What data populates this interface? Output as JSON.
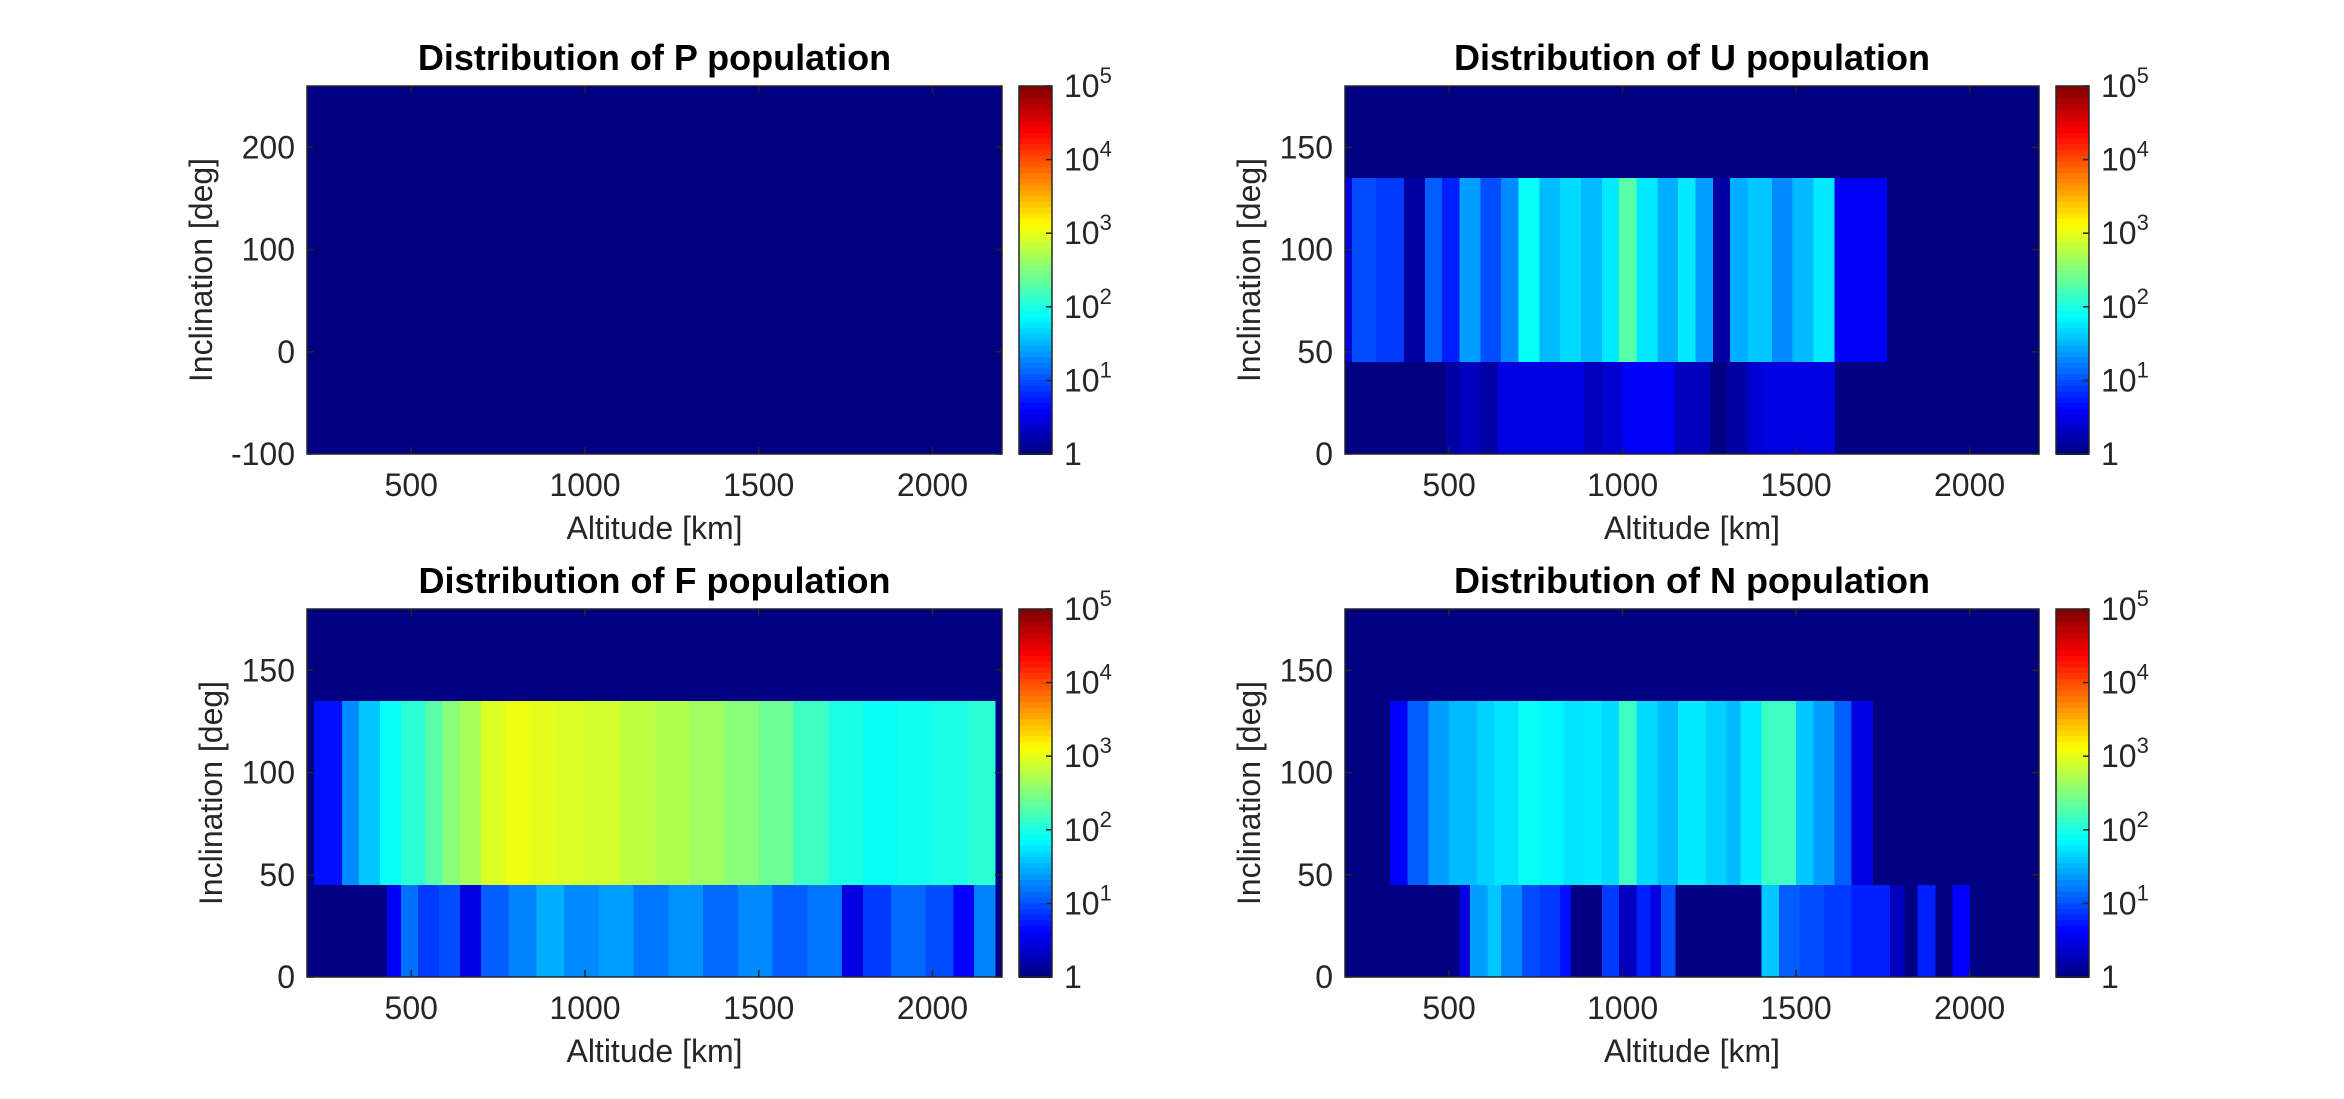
{
  "chart_data": [
    {
      "type": "heatmap",
      "title": "Distribution of P population",
      "xlabel": "Altitude [km]",
      "ylabel": "Inclination [deg]",
      "xlim": [
        200,
        2200
      ],
      "ylim": [
        -100,
        260
      ],
      "xticks": [
        500,
        1000,
        1500,
        2000
      ],
      "yticks": [
        -100,
        0,
        100,
        200
      ],
      "colorbar": {
        "scale": "log",
        "range": [
          1,
          100000
        ],
        "ticks": [
          "1",
          "10^1",
          "10^2",
          "10^3",
          "10^4",
          "10^5"
        ]
      },
      "background_value": 1,
      "bands": []
    },
    {
      "type": "heatmap",
      "title": "Distribution of U population",
      "xlabel": "Altitude [km]",
      "ylabel": "Inclination [deg]",
      "xlim": [
        200,
        2200
      ],
      "ylim": [
        0,
        180
      ],
      "xticks": [
        500,
        1000,
        1500,
        2000
      ],
      "yticks": [
        0,
        50,
        100,
        150
      ],
      "colorbar": {
        "scale": "log",
        "range": [
          1,
          100000
        ],
        "ticks": [
          "1",
          "10^1",
          "10^2",
          "10^3",
          "10^4",
          "10^5"
        ]
      },
      "background_value": 1,
      "bands": [
        {
          "ylo": 45,
          "yhi": 135,
          "cells": [
            [
              200,
              220,
              3
            ],
            [
              220,
              290,
              10
            ],
            [
              290,
              370,
              8
            ],
            [
              370,
              430,
              1.5
            ],
            [
              430,
              480,
              12
            ],
            [
              480,
              530,
              6
            ],
            [
              530,
              590,
              25
            ],
            [
              590,
              650,
              10
            ],
            [
              650,
              700,
              20
            ],
            [
              700,
              760,
              80
            ],
            [
              760,
              820,
              35
            ],
            [
              820,
              880,
              50
            ],
            [
              880,
              940,
              35
            ],
            [
              940,
              990,
              60
            ],
            [
              990,
              1040,
              200
            ],
            [
              1040,
              1100,
              60
            ],
            [
              1100,
              1160,
              30
            ],
            [
              1160,
              1210,
              60
            ],
            [
              1210,
              1260,
              25
            ],
            [
              1260,
              1310,
              1.5
            ],
            [
              1310,
              1360,
              30
            ],
            [
              1360,
              1430,
              40
            ],
            [
              1430,
              1490,
              20
            ],
            [
              1490,
              1550,
              35
            ],
            [
              1550,
              1610,
              60
            ],
            [
              1610,
              1760,
              4
            ]
          ]
        },
        {
          "ylo": 0,
          "yhi": 45,
          "cells": [
            [
              490,
              530,
              1.5
            ],
            [
              530,
              590,
              2
            ],
            [
              590,
              640,
              1.5
            ],
            [
              640,
              890,
              3
            ],
            [
              890,
              940,
              2
            ],
            [
              940,
              1000,
              2.5
            ],
            [
              1000,
              1150,
              4
            ],
            [
              1150,
              1250,
              2
            ],
            [
              1300,
              1360,
              1.5
            ],
            [
              1360,
              1400,
              2.5
            ],
            [
              1400,
              1610,
              3
            ]
          ]
        }
      ]
    },
    {
      "type": "heatmap",
      "title": "Distribution of F population",
      "xlabel": "Altitude [km]",
      "ylabel": "Inclination [deg]",
      "xlim": [
        200,
        2200
      ],
      "ylim": [
        0,
        180
      ],
      "xticks": [
        500,
        1000,
        1500,
        2000
      ],
      "yticks": [
        0,
        50,
        100,
        150
      ],
      "colorbar": {
        "scale": "log",
        "range": [
          1,
          100000
        ],
        "ticks": [
          "1",
          "10^1",
          "10^2",
          "10^3",
          "10^4",
          "10^5"
        ]
      },
      "background_value": 1,
      "bands": [
        {
          "ylo": 45,
          "yhi": 135,
          "cells": [
            [
              220,
              300,
              5
            ],
            [
              300,
              350,
              20
            ],
            [
              350,
              410,
              40
            ],
            [
              410,
              470,
              80
            ],
            [
              470,
              540,
              120
            ],
            [
              540,
              590,
              200
            ],
            [
              590,
              640,
              350
            ],
            [
              640,
              700,
              500
            ],
            [
              700,
              770,
              900
            ],
            [
              770,
              840,
              1100
            ],
            [
              840,
              910,
              1000
            ],
            [
              910,
              1000,
              900
            ],
            [
              1000,
              1100,
              800
            ],
            [
              1100,
              1200,
              650
            ],
            [
              1200,
              1300,
              550
            ],
            [
              1300,
              1400,
              450
            ],
            [
              1400,
              1500,
              350
            ],
            [
              1500,
              1600,
              250
            ],
            [
              1600,
              1700,
              150
            ],
            [
              1700,
              1800,
              100
            ],
            [
              1800,
              1900,
              80
            ],
            [
              1900,
              2000,
              90
            ],
            [
              2000,
              2100,
              100
            ],
            [
              2100,
              2180,
              120
            ]
          ]
        },
        {
          "ylo": 0,
          "yhi": 45,
          "cells": [
            [
              430,
              470,
              4
            ],
            [
              470,
              520,
              15
            ],
            [
              520,
              580,
              8
            ],
            [
              580,
              640,
              10
            ],
            [
              640,
              700,
              3
            ],
            [
              700,
              780,
              12
            ],
            [
              780,
              860,
              18
            ],
            [
              860,
              940,
              30
            ],
            [
              940,
              1040,
              20
            ],
            [
              1040,
              1140,
              25
            ],
            [
              1140,
              1240,
              16
            ],
            [
              1240,
              1340,
              22
            ],
            [
              1340,
              1440,
              14
            ],
            [
              1440,
              1540,
              20
            ],
            [
              1540,
              1640,
              12
            ],
            [
              1640,
              1740,
              16
            ],
            [
              1740,
              1800,
              3
            ],
            [
              1800,
              1880,
              8
            ],
            [
              1880,
              1980,
              14
            ],
            [
              1980,
              2060,
              10
            ],
            [
              2060,
              2120,
              4
            ],
            [
              2120,
              2180,
              18
            ]
          ]
        }
      ]
    },
    {
      "type": "heatmap",
      "title": "Distribution of N population",
      "xlabel": "Altitude [km]",
      "ylabel": "Inclination [deg]",
      "xlim": [
        200,
        2200
      ],
      "ylim": [
        0,
        180
      ],
      "xticks": [
        500,
        1000,
        1500,
        2000
      ],
      "yticks": [
        0,
        50,
        100,
        150
      ],
      "colorbar": {
        "scale": "log",
        "range": [
          1,
          100000
        ],
        "ticks": [
          "1",
          "10^1",
          "10^2",
          "10^3",
          "10^4",
          "10^5"
        ]
      },
      "background_value": 1,
      "bands": [
        {
          "ylo": 45,
          "yhi": 135,
          "cells": [
            [
              330,
              380,
              4
            ],
            [
              380,
              440,
              12
            ],
            [
              440,
              500,
              25
            ],
            [
              500,
              580,
              35
            ],
            [
              580,
              630,
              45
            ],
            [
              630,
              700,
              55
            ],
            [
              700,
              760,
              80
            ],
            [
              760,
              830,
              70
            ],
            [
              830,
              890,
              55
            ],
            [
              890,
              940,
              60
            ],
            [
              940,
              990,
              50
            ],
            [
              990,
              1040,
              150
            ],
            [
              1040,
              1100,
              50
            ],
            [
              1100,
              1160,
              35
            ],
            [
              1160,
              1240,
              60
            ],
            [
              1240,
              1300,
              45
            ],
            [
              1300,
              1340,
              35
            ],
            [
              1340,
              1400,
              60
            ],
            [
              1400,
              1500,
              150
            ],
            [
              1500,
              1550,
              40
            ],
            [
              1550,
              1610,
              25
            ],
            [
              1610,
              1660,
              12
            ],
            [
              1660,
              1720,
              3
            ]
          ]
        },
        {
          "ylo": 0,
          "yhi": 45,
          "cells": [
            [
              530,
              560,
              3
            ],
            [
              560,
              610,
              25
            ],
            [
              610,
              650,
              40
            ],
            [
              650,
              710,
              20
            ],
            [
              710,
              760,
              10
            ],
            [
              760,
              820,
              8
            ],
            [
              820,
              850,
              5
            ],
            [
              940,
              990,
              8
            ],
            [
              990,
              1040,
              2
            ],
            [
              1040,
              1080,
              6
            ],
            [
              1080,
              1110,
              3
            ],
            [
              1110,
              1150,
              10
            ],
            [
              1400,
              1450,
              40
            ],
            [
              1450,
              1510,
              12
            ],
            [
              1510,
              1580,
              10
            ],
            [
              1580,
              1660,
              8
            ],
            [
              1660,
              1770,
              6
            ],
            [
              1770,
              1810,
              2
            ],
            [
              1850,
              1900,
              6
            ],
            [
              1950,
              2000,
              4
            ]
          ]
        }
      ]
    }
  ]
}
